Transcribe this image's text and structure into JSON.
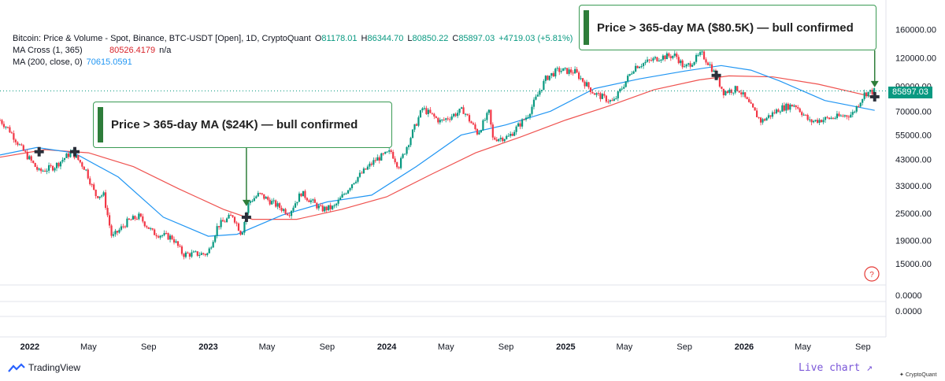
{
  "legend": {
    "title": "Bitcoin: Price & Volume - Spot, Binance, BTC-USDT [Open], 1D, CryptoQuant",
    "o_label": "O",
    "o_val": "81178.01",
    "h_label": "H",
    "h_val": "86344.70",
    "l_label": "L",
    "l_val": "80850.22",
    "c_label": "C",
    "c_val": "85897.03",
    "change": "+4719.03 (+5.81%)",
    "ma_cross_label": "MA Cross (1, 365)",
    "ma_cross_val": "80526.4179",
    "ma_cross_na": "n/a",
    "ma200_label": "MA (200, close, 0)",
    "ma200_val": "70615.0591"
  },
  "callouts": {
    "first": "Price > 365-day MA ($24K) — bull confirmed",
    "second": "Price > 365-day MA ($80.5K) — bull confirmed"
  },
  "current_price_label": "85897.03",
  "footer": {
    "brand": "TradingView",
    "live_chart": "Live chart ↗",
    "cq_brand": "CryptoQuant"
  },
  "colors": {
    "up": "#089981",
    "down": "#f23645",
    "ma365": "#ef5350",
    "ma200": "#2196f3",
    "accent": "#2e7d3a"
  },
  "chart_data": {
    "type": "line",
    "scale": "log",
    "title": "Bitcoin: Price & Volume - Spot, Binance, BTC-USDT [Open], 1D, CryptoQuant",
    "y_ticks": [
      15000,
      19000,
      25000,
      33000,
      43000,
      55000,
      70000,
      90000,
      120000,
      160000
    ],
    "y_tick_labels": [
      "15000.00",
      "19000.00",
      "25000.00",
      "33000.00",
      "43000.00",
      "55000.00",
      "70000.00",
      "90000.00",
      "120000.00",
      "160000.00"
    ],
    "lower_pane_ticks": [
      "0.0000",
      "0.0000"
    ],
    "x_ticks": [
      {
        "label": "2022",
        "date": "2022-01-01"
      },
      {
        "label": "May",
        "date": "2022-05-01"
      },
      {
        "label": "Sep",
        "date": "2022-09-01"
      },
      {
        "label": "2023",
        "date": "2023-01-01"
      },
      {
        "label": "May",
        "date": "2023-05-01"
      },
      {
        "label": "Sep",
        "date": "2023-09-01"
      },
      {
        "label": "2024",
        "date": "2024-01-01"
      },
      {
        "label": "May",
        "date": "2024-05-01"
      },
      {
        "label": "Sep",
        "date": "2024-09-01"
      },
      {
        "label": "2025",
        "date": "2025-01-01"
      },
      {
        "label": "May",
        "date": "2025-05-01"
      },
      {
        "label": "Sep",
        "date": "2025-09-01"
      },
      {
        "label": "2026",
        "date": "2026-01-01"
      },
      {
        "label": "May",
        "date": "2026-05-01"
      },
      {
        "label": "Sep",
        "date": "2026-09-01"
      }
    ],
    "x_range": [
      "2021-11-01",
      "2026-10-18"
    ],
    "y_range": [
      12500,
      175000
    ],
    "series": [
      {
        "name": "Price",
        "points": [
          [
            "2021-11-01",
            64000
          ],
          [
            "2021-11-20",
            58000
          ],
          [
            "2021-12-15",
            48000
          ],
          [
            "2022-01-20",
            38000
          ],
          [
            "2022-02-20",
            40000
          ],
          [
            "2022-03-28",
            46500
          ],
          [
            "2022-04-25",
            39000
          ],
          [
            "2022-05-15",
            30000
          ],
          [
            "2022-06-01",
            30000
          ],
          [
            "2022-06-18",
            19500
          ],
          [
            "2022-07-20",
            23000
          ],
          [
            "2022-08-12",
            24200
          ],
          [
            "2022-09-10",
            20500
          ],
          [
            "2022-10-20",
            19500
          ],
          [
            "2022-11-10",
            16500
          ],
          [
            "2022-12-31",
            16600
          ],
          [
            "2023-01-20",
            22000
          ],
          [
            "2023-02-20",
            24500
          ],
          [
            "2023-03-10",
            20200
          ],
          [
            "2023-03-25",
            28000
          ],
          [
            "2023-04-15",
            30300
          ],
          [
            "2023-06-15",
            25000
          ],
          [
            "2023-07-10",
            30700
          ],
          [
            "2023-08-20",
            26000
          ],
          [
            "2023-09-15",
            26500
          ],
          [
            "2023-10-25",
            34500
          ],
          [
            "2023-12-10",
            43000
          ],
          [
            "2024-01-10",
            46500
          ],
          [
            "2024-01-25",
            40000
          ],
          [
            "2024-03-14",
            72000
          ],
          [
            "2024-04-20",
            63000
          ],
          [
            "2024-06-05",
            71000
          ],
          [
            "2024-07-05",
            56000
          ],
          [
            "2024-07-28",
            69000
          ],
          [
            "2024-08-05",
            53000
          ],
          [
            "2024-09-06",
            54000
          ],
          [
            "2024-10-15",
            67000
          ],
          [
            "2024-11-22",
            98000
          ],
          [
            "2024-12-17",
            106000
          ],
          [
            "2025-01-20",
            104000
          ],
          [
            "2025-02-28",
            84000
          ],
          [
            "2025-04-08",
            76500
          ],
          [
            "2025-05-22",
            110000
          ],
          [
            "2025-07-14",
            121000
          ],
          [
            "2025-08-14",
            123000
          ],
          [
            "2025-09-01",
            108000
          ],
          [
            "2025-10-06",
            125000
          ],
          [
            "2025-10-25",
            110000
          ],
          [
            "2025-11-20",
            85000
          ],
          [
            "2025-12-20",
            88000
          ],
          [
            "2026-02-05",
            63000
          ],
          [
            "2026-03-15",
            72000
          ],
          [
            "2026-04-15",
            75000
          ],
          [
            "2026-05-15",
            63000
          ],
          [
            "2026-07-10",
            66000
          ],
          [
            "2026-08-10",
            68000
          ],
          [
            "2026-09-05",
            84000
          ],
          [
            "2026-09-25",
            85897
          ]
        ]
      },
      {
        "name": "MA Cross (1, 365)",
        "points": [
          [
            "2021-11-01",
            44000
          ],
          [
            "2022-02-01",
            47500
          ],
          [
            "2022-05-01",
            46000
          ],
          [
            "2022-08-01",
            40000
          ],
          [
            "2022-11-01",
            32000
          ],
          [
            "2023-02-01",
            26000
          ],
          [
            "2023-04-01",
            23500
          ],
          [
            "2023-07-01",
            23500
          ],
          [
            "2023-10-01",
            26000
          ],
          [
            "2024-01-01",
            29500
          ],
          [
            "2024-04-01",
            37000
          ],
          [
            "2024-07-01",
            46000
          ],
          [
            "2024-10-01",
            54000
          ],
          [
            "2025-01-01",
            64000
          ],
          [
            "2025-04-01",
            74000
          ],
          [
            "2025-07-01",
            87000
          ],
          [
            "2025-10-01",
            96000
          ],
          [
            "2025-12-01",
            100000
          ],
          [
            "2026-03-01",
            99000
          ],
          [
            "2026-06-01",
            92000
          ],
          [
            "2026-09-25",
            80526
          ]
        ]
      },
      {
        "name": "MA (200, close, 0)",
        "points": [
          [
            "2021-11-01",
            45000
          ],
          [
            "2022-01-15",
            48500
          ],
          [
            "2022-04-01",
            46000
          ],
          [
            "2022-07-01",
            36000
          ],
          [
            "2022-10-01",
            24000
          ],
          [
            "2023-01-01",
            19800
          ],
          [
            "2023-03-01",
            20200
          ],
          [
            "2023-06-01",
            24500
          ],
          [
            "2023-09-01",
            28000
          ],
          [
            "2023-12-01",
            30000
          ],
          [
            "2024-03-01",
            40000
          ],
          [
            "2024-06-01",
            55000
          ],
          [
            "2024-09-01",
            61000
          ],
          [
            "2024-12-01",
            70000
          ],
          [
            "2025-03-01",
            88000
          ],
          [
            "2025-06-01",
            97000
          ],
          [
            "2025-09-01",
            105000
          ],
          [
            "2025-11-15",
            111000
          ],
          [
            "2026-01-15",
            106000
          ],
          [
            "2026-03-15",
            95000
          ],
          [
            "2026-06-15",
            78000
          ],
          [
            "2026-09-25",
            70615
          ]
        ]
      }
    ],
    "cross_markers": [
      {
        "date": "2022-01-20",
        "price": 46500
      },
      {
        "date": "2022-04-03",
        "price": 46500
      },
      {
        "date": "2023-03-20",
        "price": 24000
      },
      {
        "date": "2025-11-05",
        "price": 100500
      },
      {
        "date": "2026-09-25",
        "price": 81000
      }
    ]
  }
}
